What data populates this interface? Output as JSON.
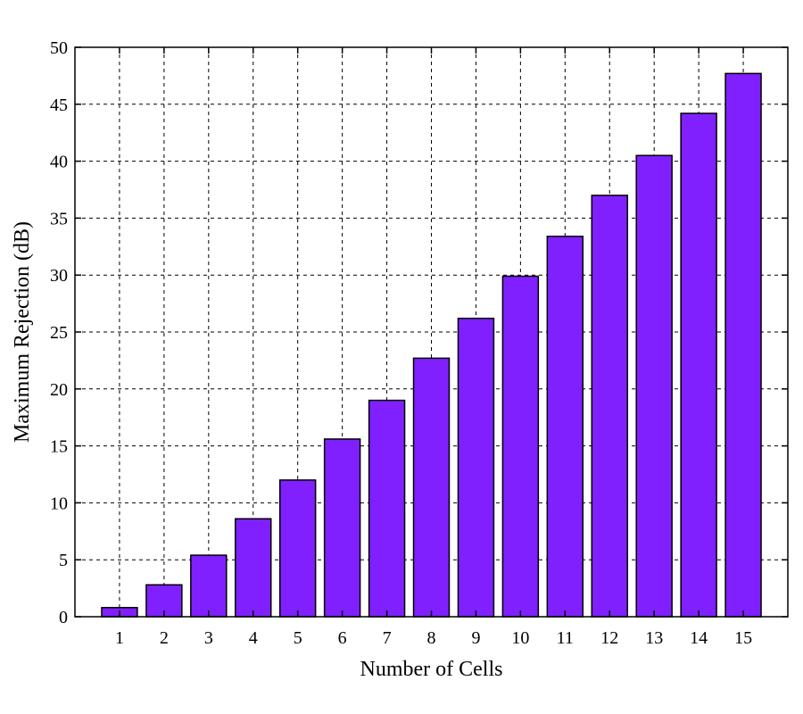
{
  "chart_data": {
    "type": "bar",
    "categories": [
      "1",
      "2",
      "3",
      "4",
      "5",
      "6",
      "7",
      "8",
      "9",
      "10",
      "11",
      "12",
      "13",
      "14",
      "15"
    ],
    "values": [
      0.8,
      2.8,
      5.4,
      8.6,
      12.0,
      15.6,
      19.0,
      22.7,
      26.2,
      29.9,
      33.4,
      37.0,
      40.5,
      44.2,
      47.7
    ],
    "xlabel": "Number of Cells",
    "ylabel": "Maximum Rejection (dB)",
    "ylim": [
      0,
      50
    ],
    "yticks": [
      0,
      5,
      10,
      15,
      20,
      25,
      30,
      35,
      40,
      45,
      50
    ],
    "grid": true,
    "bar_color": "#8020ff"
  }
}
